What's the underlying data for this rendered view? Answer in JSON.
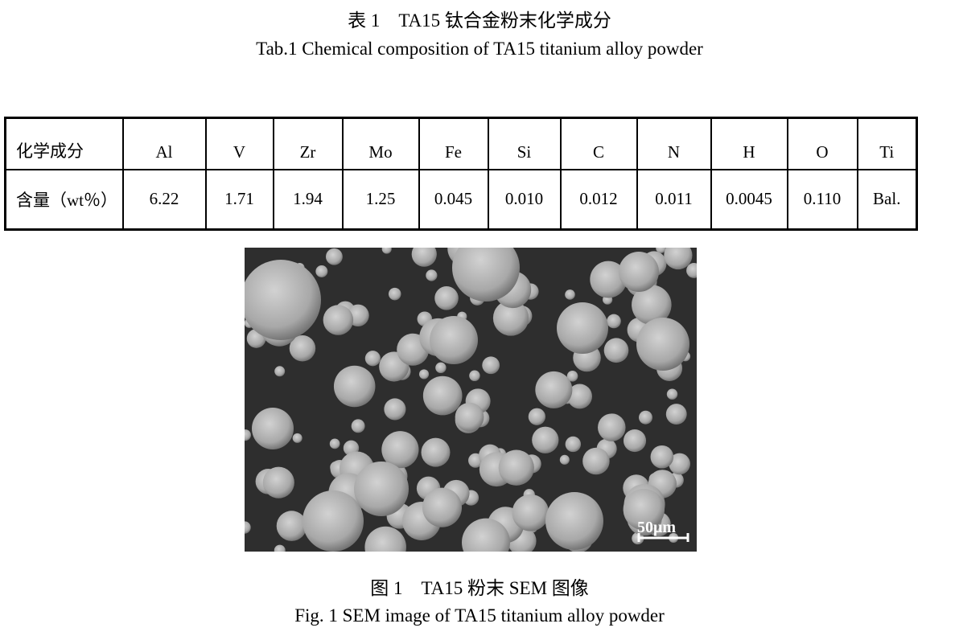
{
  "table": {
    "caption_cn": "表 1　TA15 钛合金粉末化学成分",
    "caption_en": "Tab.1 Chemical composition of TA15 titanium alloy powder",
    "row_header": "化学成分",
    "value_header": "含量（wt％）",
    "elements": [
      "Al",
      "V",
      "Zr",
      "Mo",
      "Fe",
      "Si",
      "C",
      "N",
      "H",
      "O",
      "Ti"
    ],
    "values": [
      "6.22",
      "1.71",
      "1.94",
      "1.25",
      "0.045",
      "0.010",
      "0.012",
      "0.011",
      "0.0045",
      "0.110",
      "Bal."
    ]
  },
  "figure": {
    "scale_bar": "50μm",
    "caption_cn": "图 1　TA15 粉末 SEM 图像",
    "caption_en": "Fig. 1 SEM image of TA15 titanium alloy powder"
  },
  "colors": {
    "watermark": "#b8f0b8",
    "sem_background": "#2e2e2e"
  }
}
